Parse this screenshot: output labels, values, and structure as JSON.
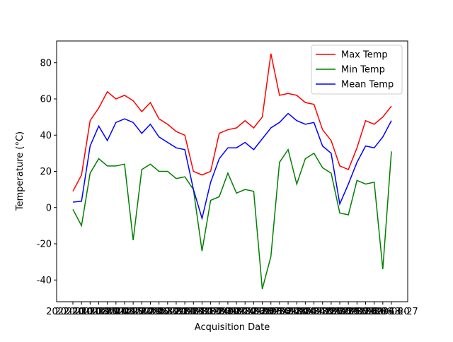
{
  "chart_data": {
    "type": "line",
    "xlabel": "Acquisition Date",
    "ylabel": "Temperature (°C)",
    "categories": [
      "2022-10-11",
      "2022-10-18",
      "2022-10-25",
      "2022-11-01",
      "2022-11-08",
      "2022-11-15",
      "2022-11-22",
      "2022-11-29",
      "2022-12-06",
      "2022-12-13",
      "2022-12-20",
      "2022-12-27",
      "2023-01-03",
      "2023-01-10",
      "2023-01-17",
      "2023-01-24",
      "2023-01-31",
      "2023-02-07",
      "2023-02-14",
      "2023-02-21",
      "2023-02-28",
      "2023-03-07",
      "2023-03-14",
      "2023-03-21",
      "2023-03-28",
      "2023-04-04",
      "2023-04-11",
      "2023-04-18",
      "2023-04-25",
      "2023-05-02",
      "2023-05-09",
      "2023-05-16",
      "2023-05-23",
      "2023-05-30",
      "2023-06-06",
      "2023-06-13",
      "2023-06-20",
      "2023-06-27"
    ],
    "series": [
      {
        "name": "Max Temp",
        "color": "#ff0000",
        "values": [
          9,
          18,
          48,
          55,
          64,
          60,
          62,
          59,
          53,
          58,
          49,
          46,
          42,
          40,
          20,
          18,
          20,
          41,
          43,
          44,
          48,
          44,
          50,
          85,
          62,
          63,
          62,
          58,
          57,
          43,
          37,
          23,
          21,
          33,
          48,
          46,
          50,
          56
        ]
      },
      {
        "name": "Min Temp",
        "color": "#008000",
        "values": [
          -1,
          -10,
          19,
          27,
          23,
          23,
          24,
          -18,
          21,
          24,
          20,
          20,
          16,
          17,
          10,
          -24,
          4,
          6,
          19,
          8,
          10,
          9,
          -45,
          -27,
          25,
          32,
          13,
          27,
          30,
          22,
          19,
          -3,
          -4,
          15,
          13,
          14,
          -34,
          31
        ]
      },
      {
        "name": "Mean Temp",
        "color": "#0000ff",
        "values": [
          3,
          3.5,
          34,
          45,
          37,
          47,
          49,
          47,
          41,
          46,
          39,
          36,
          33,
          32,
          10,
          -6,
          14,
          27,
          33,
          33,
          36,
          32,
          38,
          44,
          47,
          52,
          48,
          46,
          47,
          34,
          30,
          2,
          13,
          25,
          34,
          33,
          39,
          48
        ]
      }
    ],
    "ylim": [
      -52,
      92
    ],
    "yticks": [
      -40,
      -20,
      0,
      20,
      40,
      60,
      80
    ],
    "legend": "upper right"
  }
}
